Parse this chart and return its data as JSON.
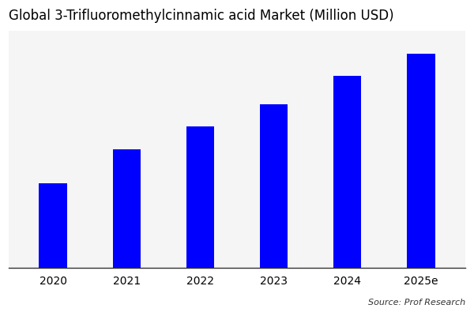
{
  "title": "Global 3-Trifluoromethylcinnamic acid Market (Million USD)",
  "categories": [
    "2020",
    "2021",
    "2022",
    "2023",
    "2024",
    "2025e"
  ],
  "values": [
    30,
    42,
    50,
    58,
    68,
    76
  ],
  "bar_color": "#0000FF",
  "background_color": "#ffffff",
  "plot_bg_color": "#f5f5f5",
  "source_text": "Source: Prof Research",
  "title_fontsize": 12,
  "tick_fontsize": 10,
  "source_fontsize": 8,
  "ylim": [
    0,
    84
  ],
  "bar_width": 0.38
}
